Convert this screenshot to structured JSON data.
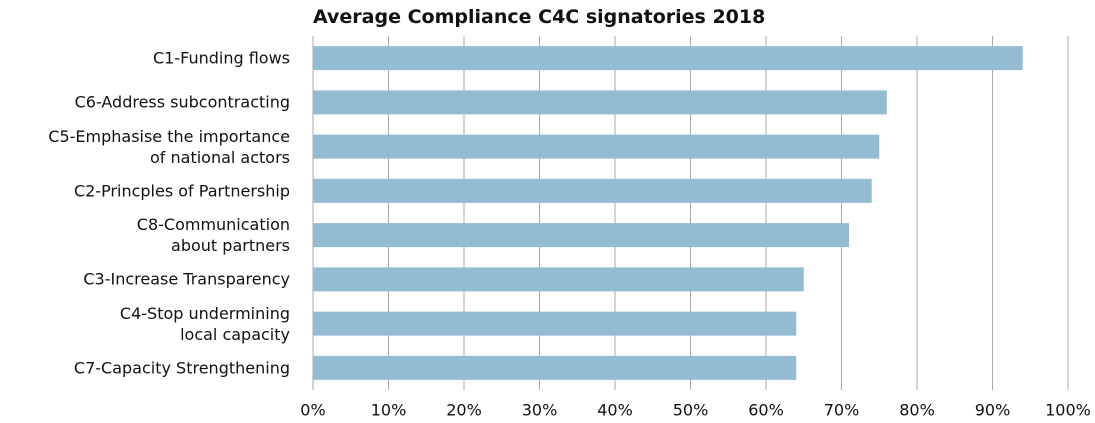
{
  "chart_data": {
    "type": "bar",
    "orientation": "horizontal",
    "title": "Average Compliance C4C signatories 2018",
    "categories": [
      "C1-Funding flows",
      "C6-Address subcontracting",
      "C5-Emphasise the importance\nof national actors",
      "C2-Princples of Partnership",
      "C8-Communication\nabout partners",
      "C3-Increase Transparency",
      "C4-Stop undermining\nlocal capacity",
      "C7-Capacity Strengthening"
    ],
    "values": [
      94,
      76,
      75,
      74,
      71,
      65,
      64,
      64
    ],
    "color": "#93bcd2",
    "xlim": [
      0,
      100
    ],
    "xticks": [
      {
        "value": 0,
        "label": "0%"
      },
      {
        "value": 10,
        "label": "10%"
      },
      {
        "value": 20,
        "label": "20%"
      },
      {
        "value": 30,
        "label": "30%"
      },
      {
        "value": 40,
        "label": "40%"
      },
      {
        "value": 50,
        "label": "50%"
      },
      {
        "value": 60,
        "label": "60%"
      },
      {
        "value": 70,
        "label": "70%"
      },
      {
        "value": 80,
        "label": "80%"
      },
      {
        "value": 90,
        "label": "90%"
      },
      {
        "value": 100,
        "label": "100%"
      }
    ],
    "grid": true
  }
}
